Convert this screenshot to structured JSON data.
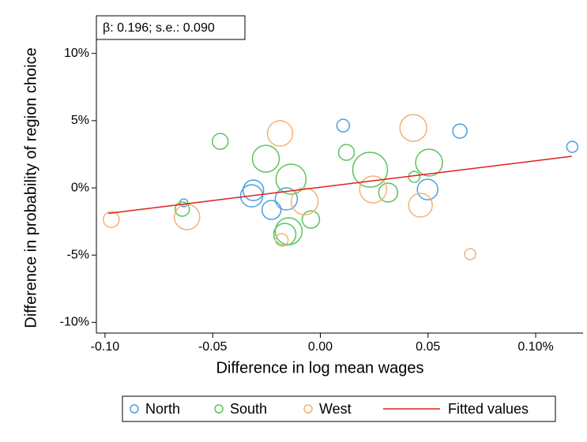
{
  "chart_data": {
    "type": "scatter",
    "annotation": "β: 0.196; s.e.: 0.090",
    "x_label": "Difference in log mean wages",
    "y_label": "Difference in probability of region choice",
    "xlim": [
      -0.104,
      0.122
    ],
    "ylim": [
      -10.8,
      12.8
    ],
    "xticks": [
      {
        "value": -0.1,
        "label": "-0.10"
      },
      {
        "value": -0.05,
        "label": "-0.05"
      },
      {
        "value": 0,
        "label": "0.00"
      },
      {
        "value": 0.05,
        "label": "0.05"
      },
      {
        "value": 0.1,
        "label": "0.10%"
      }
    ],
    "yticks": [
      {
        "value": 10,
        "label": "10%"
      },
      {
        "value": 5,
        "label": "5%"
      },
      {
        "value": 0,
        "label": "0%"
      },
      {
        "value": -5,
        "label": "-5%"
      },
      {
        "value": -10,
        "label": "-10%"
      }
    ],
    "series": [
      {
        "name": "North",
        "type": "scatter",
        "color": "#4a9fe0",
        "x": [
          0.0106,
          0.0648,
          0.117,
          -0.0634,
          -0.0311,
          -0.0319,
          -0.0227,
          -0.0158,
          0.0498
        ],
        "values": [
          4.63,
          4.22,
          3.05,
          -1.11,
          -0.18,
          -0.59,
          -1.64,
          -0.82,
          -0.12
        ],
        "sizes": [
          8,
          9,
          7,
          5,
          13,
          14,
          12,
          14,
          13
        ]
      },
      {
        "name": "South",
        "type": "scatter",
        "color": "#5cc45c",
        "x": [
          -0.0465,
          -0.0641,
          -0.0253,
          -0.0136,
          0.0121,
          0.0231,
          0.0315,
          0.0436,
          0.0505,
          -0.0044,
          -0.0147,
          -0.0165
        ],
        "values": [
          3.46,
          -1.58,
          2.17,
          0.65,
          2.64,
          1.35,
          -0.35,
          0.82,
          1.88,
          -2.35,
          -3.23,
          -3.46
        ],
        "sizes": [
          10,
          9,
          17,
          19,
          10,
          22,
          12,
          7,
          17,
          11,
          17,
          14
        ]
      },
      {
        "name": "West",
        "type": "scatter",
        "color": "#f2b27a",
        "x": [
          -0.0971,
          -0.0619,
          -0.0187,
          -0.0073,
          -0.0179,
          0.0245,
          0.0432,
          0.0465,
          0.0696
        ],
        "values": [
          -2.35,
          -2.17,
          4.05,
          -1.0,
          -3.87,
          -0.12,
          4.46,
          -1.29,
          -4.93
        ],
        "sizes": [
          10,
          16,
          16,
          17,
          8,
          17,
          17,
          15,
          7
        ]
      },
      {
        "name": "Fitted values",
        "type": "line",
        "color": "#e0201b",
        "x": [
          -0.0985,
          0.1168
        ],
        "values": [
          -1.9,
          2.35
        ]
      }
    ]
  }
}
